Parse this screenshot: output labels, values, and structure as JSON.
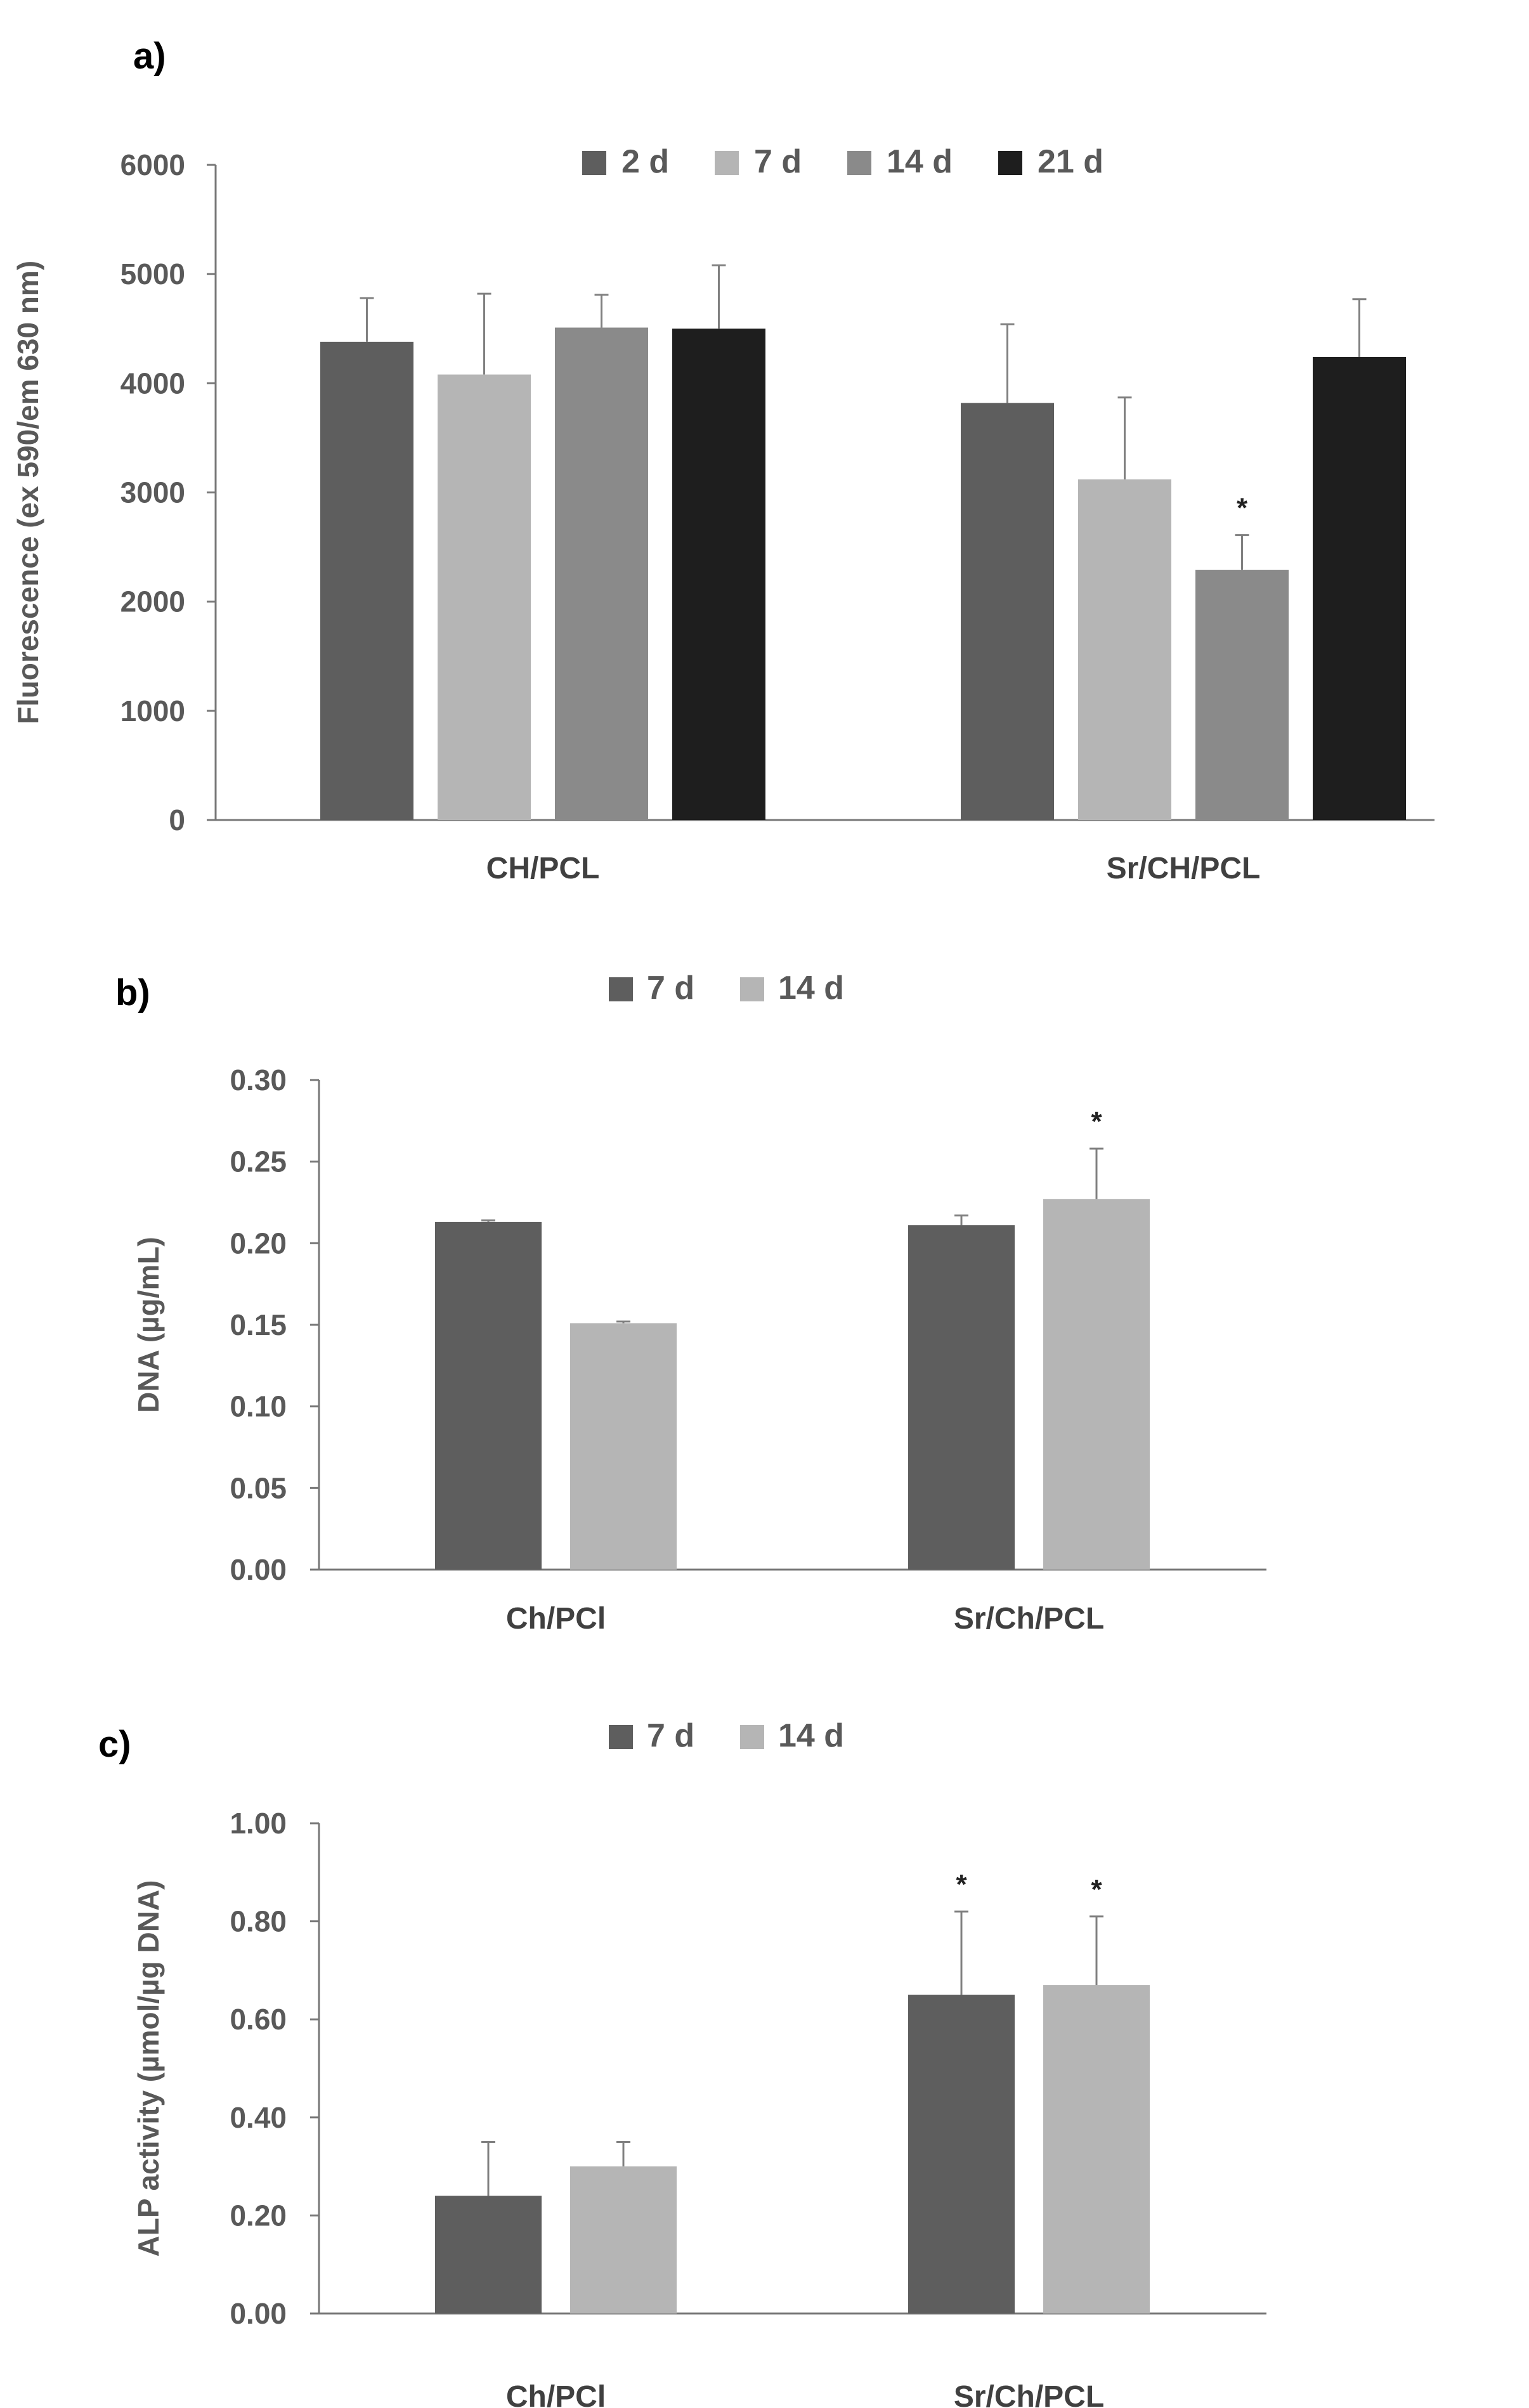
{
  "chart_data": [
    {
      "panel": "a)",
      "type": "bar",
      "ylabel": "Fluorescence (ex 590/em 630 nm)",
      "ylim": [
        0,
        6000
      ],
      "yticks": [
        "0",
        "1000",
        "2000",
        "3000",
        "4000",
        "5000",
        "6000"
      ],
      "categories": [
        "CH/PCL",
        "Sr/CH/PCL"
      ],
      "legend_position": "top",
      "series": [
        {
          "name": "2 d",
          "color": "#5e5e5e",
          "values": [
            4380,
            3820
          ],
          "errors": [
            400,
            720
          ],
          "sig": [
            "",
            ""
          ]
        },
        {
          "name": "7 d",
          "color": "#b5b5b5",
          "values": [
            4080,
            3120
          ],
          "errors": [
            740,
            750
          ],
          "sig": [
            "",
            ""
          ]
        },
        {
          "name": "14 d",
          "color": "#8a8a8a",
          "values": [
            4510,
            2290
          ],
          "errors": [
            300,
            320
          ],
          "sig": [
            "",
            "*"
          ]
        },
        {
          "name": "21 d",
          "color": "#1e1e1e",
          "values": [
            4500,
            4240
          ],
          "errors": [
            580,
            530
          ],
          "sig": [
            "",
            ""
          ]
        }
      ]
    },
    {
      "panel": "b)",
      "type": "bar",
      "ylabel": "DNA (µg/mL)",
      "ylim": [
        0,
        0.3
      ],
      "yticks": [
        "0.00",
        "0.05",
        "0.10",
        "0.15",
        "0.20",
        "0.25",
        "0.30"
      ],
      "categories": [
        "Ch/PCl",
        "Sr/Ch/PCL"
      ],
      "legend_position": "top",
      "series": [
        {
          "name": "7 d",
          "color": "#5e5e5e",
          "values": [
            0.213,
            0.211
          ],
          "errors": [
            0.001,
            0.006
          ],
          "sig": [
            "",
            ""
          ]
        },
        {
          "name": "14 d",
          "color": "#b5b5b5",
          "values": [
            0.151,
            0.227
          ],
          "errors": [
            0.001,
            0.031
          ],
          "sig": [
            "",
            "*"
          ]
        }
      ]
    },
    {
      "panel": "c)",
      "type": "bar",
      "ylabel": "ALP activity (µmol/µg DNA)",
      "ylim": [
        0,
        1.0
      ],
      "yticks": [
        "0.00",
        "0.20",
        "0.40",
        "0.60",
        "0.80",
        "1.00"
      ],
      "categories": [
        "Ch/PCl",
        "Sr/Ch/PCL"
      ],
      "legend_position": "top",
      "series": [
        {
          "name": "7 d",
          "color": "#5e5e5e",
          "values": [
            0.24,
            0.65
          ],
          "errors": [
            0.11,
            0.17
          ],
          "sig": [
            "",
            "*"
          ]
        },
        {
          "name": "14 d",
          "color": "#b5b5b5",
          "values": [
            0.3,
            0.67
          ],
          "errors": [
            0.05,
            0.14
          ],
          "sig": [
            "",
            "*"
          ]
        }
      ]
    }
  ]
}
